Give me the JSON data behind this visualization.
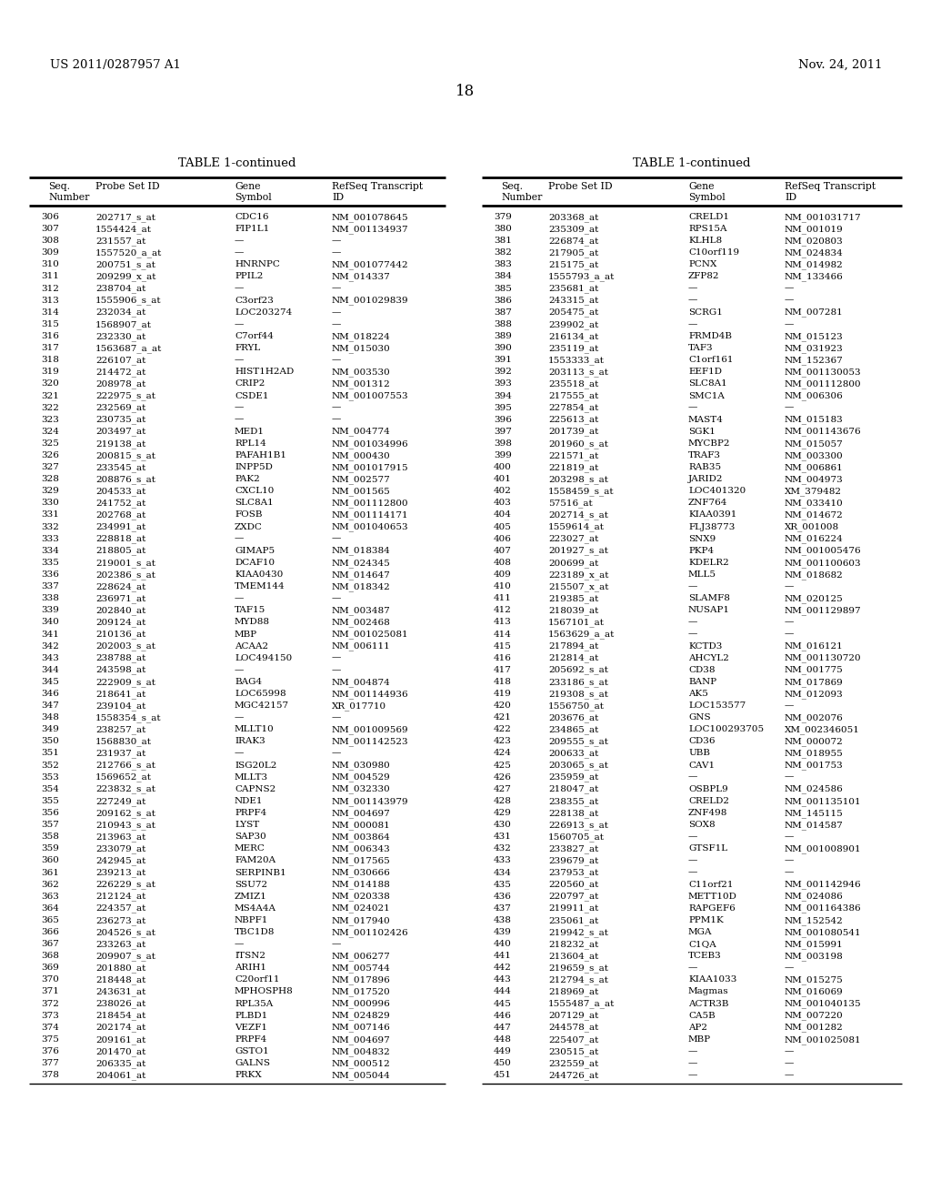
{
  "header_left": "US 2011/0287957 A1",
  "header_right": "Nov. 24, 2011",
  "page_number": "18",
  "table_title": "TABLE 1-continued",
  "left_table": [
    [
      "306",
      "202717_s_at",
      "CDC16",
      "NM_001078645"
    ],
    [
      "307",
      "1554424_at",
      "FIP1L1",
      "NM_001134937"
    ],
    [
      "308",
      "231557_at",
      "—",
      "—"
    ],
    [
      "309",
      "1557520_a_at",
      "—",
      "—"
    ],
    [
      "310",
      "200751_s_at",
      "HNRNPC",
      "NM_001077442"
    ],
    [
      "311",
      "209299_x_at",
      "PPIL2",
      "NM_014337"
    ],
    [
      "312",
      "238704_at",
      "—",
      "—"
    ],
    [
      "313",
      "1555906_s_at",
      "C3orf23",
      "NM_001029839"
    ],
    [
      "314",
      "232034_at",
      "LOC203274",
      "—"
    ],
    [
      "315",
      "1568907_at",
      "—",
      "—"
    ],
    [
      "316",
      "232330_at",
      "C7orf44",
      "NM_018224"
    ],
    [
      "317",
      "1563687_a_at",
      "FRYL",
      "NM_015030"
    ],
    [
      "318",
      "226107_at",
      "—",
      "—"
    ],
    [
      "319",
      "214472_at",
      "HIST1H2AD",
      "NM_003530"
    ],
    [
      "320",
      "208978_at",
      "CRIP2",
      "NM_001312"
    ],
    [
      "321",
      "222975_s_at",
      "CSDE1",
      "NM_001007553"
    ],
    [
      "322",
      "232569_at",
      "—",
      "—"
    ],
    [
      "323",
      "230735_at",
      "—",
      "—"
    ],
    [
      "324",
      "203497_at",
      "MED1",
      "NM_004774"
    ],
    [
      "325",
      "219138_at",
      "RPL14",
      "NM_001034996"
    ],
    [
      "326",
      "200815_s_at",
      "PAFAH1B1",
      "NM_000430"
    ],
    [
      "327",
      "233545_at",
      "INPP5D",
      "NM_001017915"
    ],
    [
      "328",
      "208876_s_at",
      "PAK2",
      "NM_002577"
    ],
    [
      "329",
      "204533_at",
      "CXCL10",
      "NM_001565"
    ],
    [
      "330",
      "241752_at",
      "SLC8A1",
      "NM_001112800"
    ],
    [
      "331",
      "202768_at",
      "FOSB",
      "NM_001114171"
    ],
    [
      "332",
      "234991_at",
      "ZXDC",
      "NM_001040653"
    ],
    [
      "333",
      "228818_at",
      "—",
      "—"
    ],
    [
      "334",
      "218805_at",
      "GIMAP5",
      "NM_018384"
    ],
    [
      "335",
      "219001_s_at",
      "DCAF10",
      "NM_024345"
    ],
    [
      "336",
      "202386_s_at",
      "KIAA0430",
      "NM_014647"
    ],
    [
      "337",
      "228624_at",
      "TMEM144",
      "NM_018342"
    ],
    [
      "338",
      "236971_at",
      "—",
      "—"
    ],
    [
      "339",
      "202840_at",
      "TAF15",
      "NM_003487"
    ],
    [
      "340",
      "209124_at",
      "MYD88",
      "NM_002468"
    ],
    [
      "341",
      "210136_at",
      "MBP",
      "NM_001025081"
    ],
    [
      "342",
      "202003_s_at",
      "ACAA2",
      "NM_006111"
    ],
    [
      "343",
      "238788_at",
      "LOC494150",
      "—"
    ],
    [
      "344",
      "243598_at",
      "—",
      "—"
    ],
    [
      "345",
      "222909_s_at",
      "BAG4",
      "NM_004874"
    ],
    [
      "346",
      "218641_at",
      "LOC65998",
      "NM_001144936"
    ],
    [
      "347",
      "239104_at",
      "MGC42157",
      "XR_017710"
    ],
    [
      "348",
      "1558354_s_at",
      "—",
      "—"
    ],
    [
      "349",
      "238257_at",
      "MLLT10",
      "NM_001009569"
    ],
    [
      "350",
      "1568830_at",
      "IRAK3",
      "NM_001142523"
    ],
    [
      "351",
      "231937_at",
      "—",
      "—"
    ],
    [
      "352",
      "212766_s_at",
      "ISG20L2",
      "NM_030980"
    ],
    [
      "353",
      "1569652_at",
      "MLLT3",
      "NM_004529"
    ],
    [
      "354",
      "223832_s_at",
      "CAPNS2",
      "NM_032330"
    ],
    [
      "355",
      "227249_at",
      "NDE1",
      "NM_001143979"
    ],
    [
      "356",
      "209162_s_at",
      "PRPF4",
      "NM_004697"
    ],
    [
      "357",
      "210943_s_at",
      "LYST",
      "NM_000081"
    ],
    [
      "358",
      "213963_at",
      "SAP30",
      "NM_003864"
    ],
    [
      "359",
      "233079_at",
      "MERC",
      "NM_006343"
    ],
    [
      "360",
      "242945_at",
      "FAM20A",
      "NM_017565"
    ],
    [
      "361",
      "239213_at",
      "SERPINB1",
      "NM_030666"
    ],
    [
      "362",
      "226229_s_at",
      "SSU72",
      "NM_014188"
    ],
    [
      "363",
      "212124_at",
      "ZMIZ1",
      "NM_020338"
    ],
    [
      "364",
      "224357_at",
      "MS4A4A",
      "NM_024021"
    ],
    [
      "365",
      "236273_at",
      "NBPF1",
      "NM_017940"
    ],
    [
      "366",
      "204526_s_at",
      "TBC1D8",
      "NM_001102426"
    ],
    [
      "367",
      "233263_at",
      "—",
      "—"
    ],
    [
      "368",
      "209907_s_at",
      "ITSN2",
      "NM_006277"
    ],
    [
      "369",
      "201880_at",
      "ARIH1",
      "NM_005744"
    ],
    [
      "370",
      "218448_at",
      "C20orf11",
      "NM_017896"
    ],
    [
      "371",
      "243631_at",
      "MPHOSPH8",
      "NM_017520"
    ],
    [
      "372",
      "238026_at",
      "RPL35A",
      "NM_000996"
    ],
    [
      "373",
      "218454_at",
      "PLBD1",
      "NM_024829"
    ],
    [
      "374",
      "202174_at",
      "VEZF1",
      "NM_007146"
    ],
    [
      "375",
      "209161_at",
      "PRPF4",
      "NM_004697"
    ],
    [
      "376",
      "201470_at",
      "GSTO1",
      "NM_004832"
    ],
    [
      "377",
      "206335_at",
      "GALNS",
      "NM_000512"
    ],
    [
      "378",
      "204061_at",
      "PRKX",
      "NM_005044"
    ]
  ],
  "right_table": [
    [
      "379",
      "203368_at",
      "CRELD1",
      "NM_001031717"
    ],
    [
      "380",
      "235309_at",
      "RPS15A",
      "NM_001019"
    ],
    [
      "381",
      "226874_at",
      "KLHL8",
      "NM_020803"
    ],
    [
      "382",
      "217905_at",
      "C10orf119",
      "NM_024834"
    ],
    [
      "383",
      "215175_at",
      "PCNX",
      "NM_014982"
    ],
    [
      "384",
      "1555793_a_at",
      "ZFP82",
      "NM_133466"
    ],
    [
      "385",
      "235681_at",
      "—",
      "—"
    ],
    [
      "386",
      "243315_at",
      "—",
      "—"
    ],
    [
      "387",
      "205475_at",
      "SCRG1",
      "NM_007281"
    ],
    [
      "388",
      "239902_at",
      "—",
      "—"
    ],
    [
      "389",
      "216134_at",
      "FRMD4B",
      "NM_015123"
    ],
    [
      "390",
      "235119_at",
      "TAF3",
      "NM_031923"
    ],
    [
      "391",
      "1553333_at",
      "C1orf161",
      "NM_152367"
    ],
    [
      "392",
      "203113_s_at",
      "EEF1D",
      "NM_001130053"
    ],
    [
      "393",
      "235518_at",
      "SLC8A1",
      "NM_001112800"
    ],
    [
      "394",
      "217555_at",
      "SMC1A",
      "NM_006306"
    ],
    [
      "395",
      "227854_at",
      "—",
      "—"
    ],
    [
      "396",
      "225613_at",
      "MAST4",
      "NM_015183"
    ],
    [
      "397",
      "201739_at",
      "SGK1",
      "NM_001143676"
    ],
    [
      "398",
      "201960_s_at",
      "MYCBP2",
      "NM_015057"
    ],
    [
      "399",
      "221571_at",
      "TRAF3",
      "NM_003300"
    ],
    [
      "400",
      "221819_at",
      "RAB35",
      "NM_006861"
    ],
    [
      "401",
      "203298_s_at",
      "JARID2",
      "NM_004973"
    ],
    [
      "402",
      "1558459_s_at",
      "LOC401320",
      "XM_379482"
    ],
    [
      "403",
      "57516_at",
      "ZNF764",
      "NM_033410"
    ],
    [
      "404",
      "202714_s_at",
      "KIAA0391",
      "NM_014672"
    ],
    [
      "405",
      "1559614_at",
      "FLJ38773",
      "XR_001008"
    ],
    [
      "406",
      "223027_at",
      "SNX9",
      "NM_016224"
    ],
    [
      "407",
      "201927_s_at",
      "PKP4",
      "NM_001005476"
    ],
    [
      "408",
      "200699_at",
      "KDELR2",
      "NM_001100603"
    ],
    [
      "409",
      "223189_x_at",
      "MLL5",
      "NM_018682"
    ],
    [
      "410",
      "215507_x_at",
      "—",
      "—"
    ],
    [
      "411",
      "219385_at",
      "SLAMF8",
      "NM_020125"
    ],
    [
      "412",
      "218039_at",
      "NUSAP1",
      "NM_001129897"
    ],
    [
      "413",
      "1567101_at",
      "—",
      "—"
    ],
    [
      "414",
      "1563629_a_at",
      "—",
      "—"
    ],
    [
      "415",
      "217894_at",
      "KCTD3",
      "NM_016121"
    ],
    [
      "416",
      "212814_at",
      "AHCYL2",
      "NM_001130720"
    ],
    [
      "417",
      "205692_s_at",
      "CD38",
      "NM_001775"
    ],
    [
      "418",
      "233186_s_at",
      "BANP",
      "NM_017869"
    ],
    [
      "419",
      "219308_s_at",
      "AK5",
      "NM_012093"
    ],
    [
      "420",
      "1556750_at",
      "LOC153577",
      "—"
    ],
    [
      "421",
      "203676_at",
      "GNS",
      "NM_002076"
    ],
    [
      "422",
      "234865_at",
      "LOC100293705",
      "XM_002346051"
    ],
    [
      "423",
      "209555_s_at",
      "CD36",
      "NM_000072"
    ],
    [
      "424",
      "200633_at",
      "UBB",
      "NM_018955"
    ],
    [
      "425",
      "203065_s_at",
      "CAV1",
      "NM_001753"
    ],
    [
      "426",
      "235959_at",
      "—",
      "—"
    ],
    [
      "427",
      "218047_at",
      "OSBPL9",
      "NM_024586"
    ],
    [
      "428",
      "238355_at",
      "CRELD2",
      "NM_001135101"
    ],
    [
      "429",
      "228138_at",
      "ZNF498",
      "NM_145115"
    ],
    [
      "430",
      "226913_s_at",
      "SOX8",
      "NM_014587"
    ],
    [
      "431",
      "1560705_at",
      "—",
      "—"
    ],
    [
      "432",
      "233827_at",
      "GTSF1L",
      "NM_001008901"
    ],
    [
      "433",
      "239679_at",
      "—",
      "—"
    ],
    [
      "434",
      "237953_at",
      "—",
      "—"
    ],
    [
      "435",
      "220560_at",
      "C11orf21",
      "NM_001142946"
    ],
    [
      "436",
      "220797_at",
      "METT10D",
      "NM_024086"
    ],
    [
      "437",
      "219911_at",
      "RAPGEF6",
      "NM_001164386"
    ],
    [
      "438",
      "235061_at",
      "PPM1K",
      "NM_152542"
    ],
    [
      "439",
      "219942_s_at",
      "MGA",
      "NM_001080541"
    ],
    [
      "440",
      "218232_at",
      "C1QA",
      "NM_015991"
    ],
    [
      "441",
      "213604_at",
      "TCEB3",
      "NM_003198"
    ],
    [
      "442",
      "219659_s_at",
      "—",
      "—"
    ],
    [
      "443",
      "212794_s_at",
      "KIAA1033",
      "NM_015275"
    ],
    [
      "444",
      "218969_at",
      "Magmas",
      "NM_016069"
    ],
    [
      "445",
      "1555487_a_at",
      "ACTR3B",
      "NM_001040135"
    ],
    [
      "446",
      "207129_at",
      "CA5B",
      "NM_007220"
    ],
    [
      "447",
      "244578_at",
      "AP2",
      "NM_001282"
    ],
    [
      "448",
      "225407_at",
      "MBP",
      "NM_001025081"
    ],
    [
      "449",
      "230515_at",
      "—",
      "—"
    ],
    [
      "450",
      "232559_at",
      "—",
      "—"
    ],
    [
      "451",
      "244726_at",
      "—",
      "—"
    ]
  ],
  "bg_color": "#ffffff",
  "text_color": "#000000",
  "header_fontsize": 9.5,
  "title_fontsize": 9.5,
  "col_header_fontsize": 7.8,
  "data_fontsize": 7.5,
  "page_num_fontsize": 12
}
